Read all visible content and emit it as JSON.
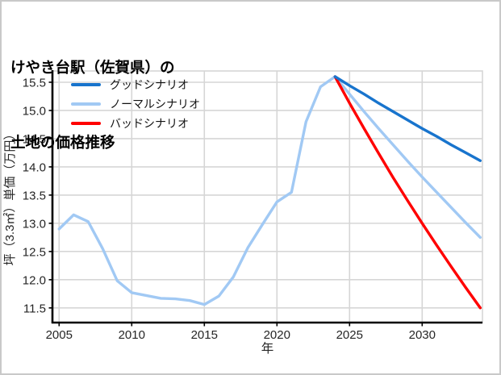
{
  "figure": {
    "title_line1": "けやき台駅（佐賀県）の",
    "title_line2": "土地の価格推移"
  },
  "chart_data": {
    "type": "line",
    "title": "けやき台駅（佐賀県）の土地の価格推移",
    "xlabel": "年",
    "ylabel": "坪（3.3㎡）単価（万円）",
    "xlim": [
      2004.54,
      2034.15
    ],
    "ylim": [
      11.24,
      15.7
    ],
    "x_ticks": [
      2005,
      2010,
      2015,
      2020,
      2025,
      2030
    ],
    "y_ticks": [
      11.5,
      12.0,
      12.5,
      13.0,
      13.5,
      14.0,
      14.5,
      15.0,
      15.5
    ],
    "grid": true,
    "legend_position": "upper-left",
    "series": [
      {
        "name": "グッドシナリオ",
        "color": "#1874cd",
        "x": [
          2024,
          2025,
          2026,
          2027,
          2028,
          2029,
          2030,
          2031,
          2032,
          2033,
          2034
        ],
        "values": [
          15.6,
          15.44,
          15.29,
          15.13,
          14.98,
          14.83,
          14.68,
          14.54,
          14.39,
          14.25,
          14.11
        ]
      },
      {
        "name": "ノーマルシナリオ",
        "color": "#a1c9f4",
        "x": [
          2005,
          2006,
          2007,
          2008,
          2009,
          2010,
          2011,
          2012,
          2013,
          2014,
          2015,
          2016,
          2017,
          2018,
          2019,
          2020,
          2021,
          2022,
          2023,
          2024,
          2025,
          2026,
          2027,
          2028,
          2029,
          2030,
          2031,
          2032,
          2033,
          2034
        ],
        "values": [
          12.9,
          13.15,
          13.03,
          12.55,
          11.98,
          11.77,
          11.72,
          11.67,
          11.66,
          11.63,
          11.56,
          11.71,
          12.05,
          12.57,
          12.98,
          13.38,
          13.55,
          14.8,
          15.42,
          15.6,
          15.29,
          14.98,
          14.68,
          14.39,
          14.1,
          13.82,
          13.55,
          13.28,
          13.01,
          12.75
        ]
      },
      {
        "name": "バッドシナリオ",
        "color": "#ff0000",
        "x": [
          2024,
          2025,
          2026,
          2027,
          2028,
          2029,
          2030,
          2031,
          2032,
          2033,
          2034
        ],
        "values": [
          15.6,
          15.13,
          14.68,
          14.24,
          13.81,
          13.4,
          13.0,
          12.61,
          12.23,
          11.86,
          11.5
        ]
      }
    ],
    "colors": {
      "grid": "#d6d6d6",
      "spine": "#000000",
      "tick_label": "#262626"
    }
  }
}
